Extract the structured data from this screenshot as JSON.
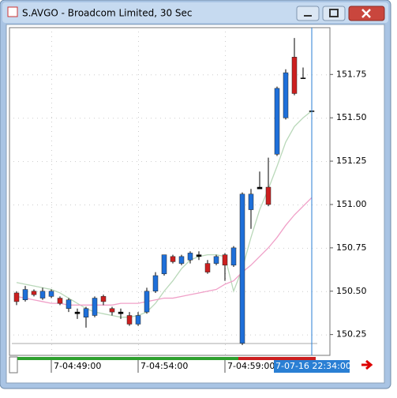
{
  "window_title": "S.AVGO - Broadcom Limited, 30 Sec",
  "chart_data": {
    "type": "candlestick",
    "categories": [
      null,
      null,
      null,
      null,
      "7-04:49:00",
      null,
      null,
      null,
      null,
      null,
      null,
      null,
      null,
      null,
      "7-04:54:00",
      null,
      null,
      null,
      null,
      null,
      null,
      null,
      null,
      null,
      "7-04:59:00",
      null,
      null,
      null,
      null,
      null,
      null,
      null,
      null,
      null,
      null
    ],
    "open": [
      150.49,
      150.45,
      150.5,
      150.46,
      150.47,
      150.46,
      150.4,
      150.38,
      150.35,
      150.36,
      150.47,
      150.4,
      150.38,
      150.36,
      150.31,
      150.38,
      150.5,
      150.6,
      150.7,
      150.66,
      150.68,
      150.71,
      150.66,
      150.66,
      150.71,
      150.65,
      150.2,
      150.97,
      151.09,
      151.1,
      151.29,
      151.5,
      151.85,
      151.73,
      151.54
    ],
    "high": [
      150.5,
      150.53,
      150.51,
      150.52,
      150.51,
      150.47,
      150.46,
      150.4,
      150.41,
      150.47,
      150.48,
      150.41,
      150.4,
      150.38,
      150.38,
      150.52,
      150.61,
      150.71,
      150.71,
      150.71,
      150.73,
      150.73,
      150.68,
      150.71,
      150.72,
      150.76,
      151.07,
      151.09,
      151.19,
      151.27,
      151.68,
      151.78,
      151.96,
      151.79,
      151.8
    ],
    "low": [
      150.42,
      150.44,
      150.47,
      150.45,
      150.46,
      150.42,
      150.38,
      150.34,
      150.29,
      150.35,
      150.42,
      150.36,
      150.34,
      150.3,
      150.3,
      150.37,
      150.49,
      150.59,
      150.66,
      150.65,
      150.66,
      150.68,
      150.6,
      150.65,
      150.56,
      150.64,
      150.19,
      150.86,
      151.09,
      150.99,
      151.28,
      151.49,
      151.63,
      151.73,
      151.54
    ],
    "close": [
      150.44,
      150.51,
      150.48,
      150.5,
      150.5,
      150.43,
      150.45,
      150.37,
      150.4,
      150.46,
      150.44,
      150.38,
      150.37,
      150.31,
      150.36,
      150.5,
      150.59,
      150.71,
      150.67,
      150.7,
      150.72,
      150.7,
      150.61,
      150.7,
      150.65,
      150.75,
      151.06,
      151.06,
      151.1,
      151.0,
      151.67,
      151.76,
      151.64,
      151.73,
      151.54
    ],
    "up_color": "#1e6fd9",
    "down_color": "#cc1f1f",
    "doji_color": "#000000",
    "overlays": [
      {
        "color": "#b9d8b9",
        "values": [
          150.55,
          150.54,
          150.53,
          150.52,
          150.51,
          150.49,
          150.46,
          150.43,
          150.4,
          150.38,
          150.37,
          150.36,
          150.35,
          150.35,
          150.36,
          150.38,
          150.43,
          150.5,
          150.56,
          150.63,
          150.68,
          150.7,
          150.71,
          150.71,
          150.7,
          150.5,
          150.63,
          150.81,
          150.97,
          151.09,
          151.22,
          151.36,
          151.45,
          151.5,
          151.54
        ]
      },
      {
        "color": "#f0a0c8",
        "values": [
          150.47,
          150.46,
          150.45,
          150.44,
          150.43,
          150.43,
          150.42,
          150.42,
          150.42,
          150.42,
          150.42,
          150.42,
          150.43,
          150.43,
          150.43,
          150.44,
          150.45,
          150.46,
          150.46,
          150.47,
          150.48,
          150.49,
          150.5,
          150.51,
          150.54,
          150.56,
          150.61,
          150.65,
          150.7,
          150.75,
          150.81,
          150.88,
          150.94,
          150.99,
          151.04
        ]
      }
    ],
    "ylim": [
      150.13,
      152.02
    ],
    "yticks": [
      {
        "value": 150.25,
        "label": "150.25"
      },
      {
        "value": 150.5,
        "label": "150.50"
      },
      {
        "value": 150.75,
        "label": "150.75"
      },
      {
        "value": 151,
        "label": "151.00"
      },
      {
        "value": 151.25,
        "label": "151.25"
      },
      {
        "value": 151.5,
        "label": "151.50"
      },
      {
        "value": 151.75,
        "label": "151.75"
      }
    ],
    "cursor_label": "7-07-16 22:34:00"
  }
}
